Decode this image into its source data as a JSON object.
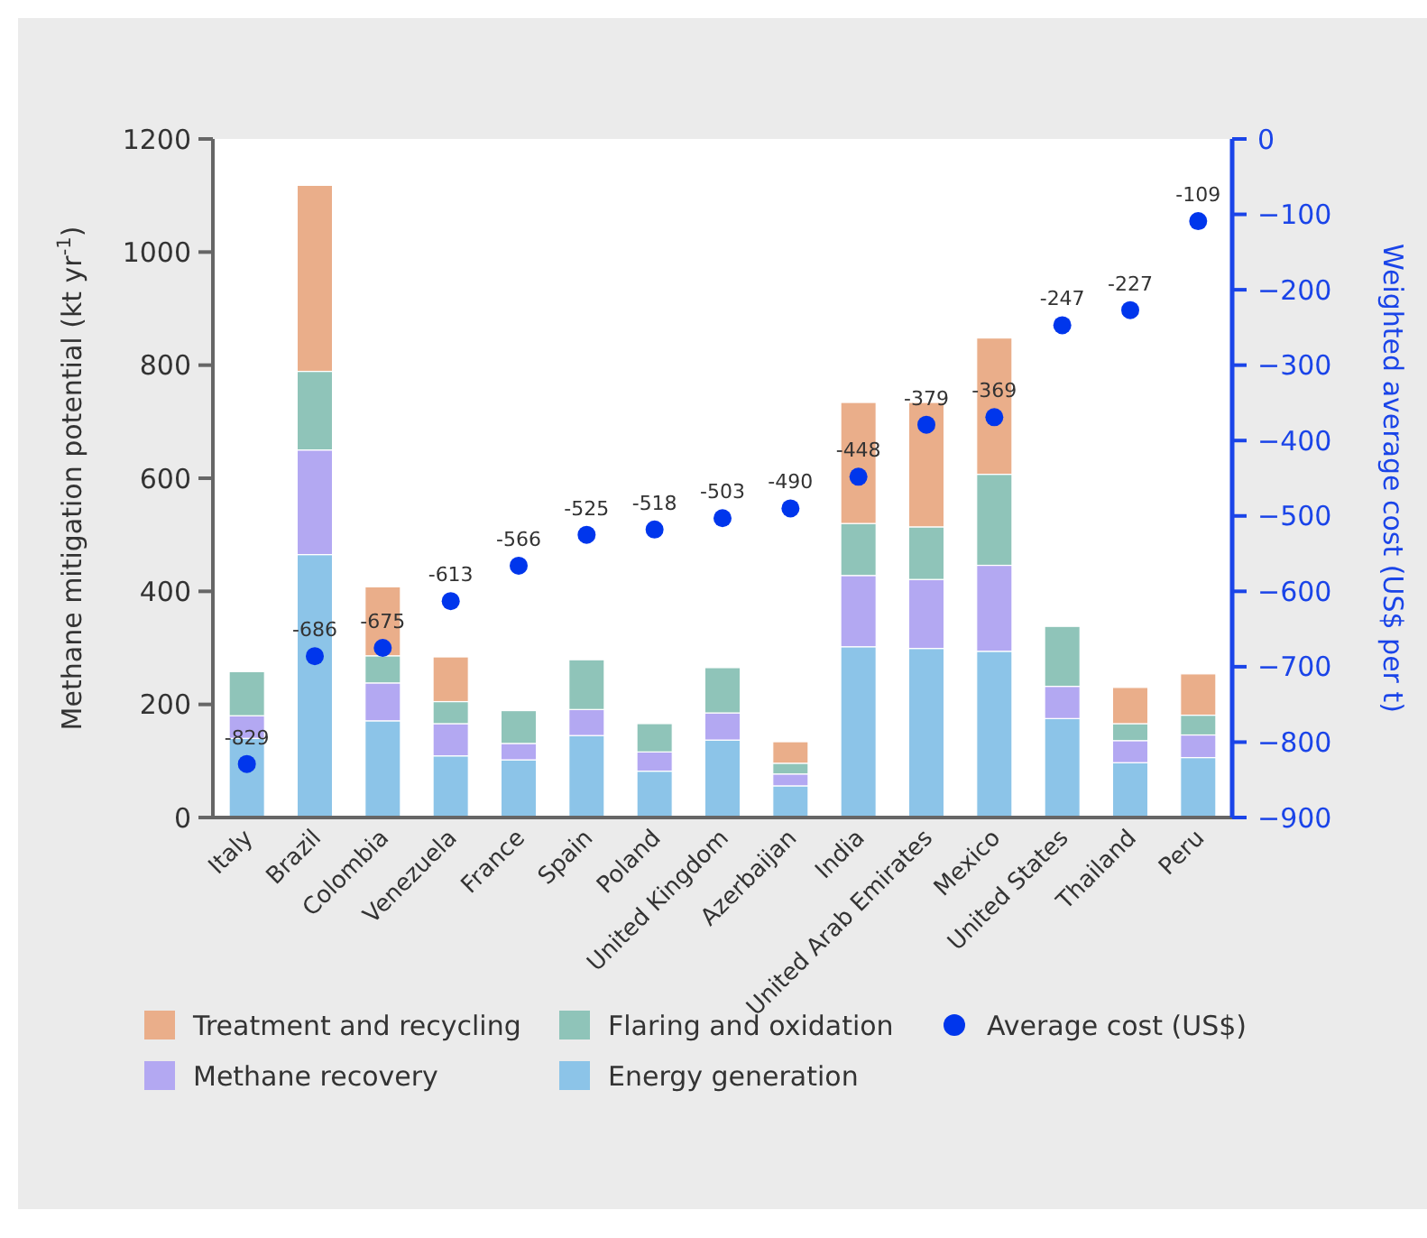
{
  "chart_data": {
    "type": "bar",
    "stacked": true,
    "ylabel": "Methane mitigation potential (kt yr$^{-1}$)",
    "y2label": "Weighted average cost (US$ per t)",
    "categories": [
      "Italy",
      "Brazil",
      "Colombia",
      "Venezuela",
      "France",
      "Spain",
      "Poland",
      "United Kingdom",
      "Azerbaijan",
      "India",
      "United Arab Emirates",
      "Mexico",
      "United States",
      "Thailand",
      "Peru"
    ],
    "ylim": [
      0,
      1200
    ],
    "yticks": [
      0,
      200,
      400,
      600,
      800,
      1000,
      1200
    ],
    "y2lim": [
      -900,
      0
    ],
    "y2ticks": [
      -900,
      -800,
      -700,
      -600,
      -500,
      -400,
      -300,
      -200,
      -100,
      0
    ],
    "legend": "bottom",
    "grid": false,
    "series": [
      {
        "name": "Energy generation",
        "color": "#8cc4e8",
        "values": [
          140,
          465,
          171,
          109,
          102,
          145,
          82,
          137,
          56,
          302,
          299,
          294,
          175,
          97,
          106
        ]
      },
      {
        "name": "Methane recovery",
        "color": "#b3a8f2",
        "values": [
          40,
          185,
          67,
          57,
          29,
          46,
          34,
          48,
          21,
          126,
          122,
          152,
          57,
          39,
          40
        ]
      },
      {
        "name": "Flaring and oxidation",
        "color": "#8fc4b9",
        "values": [
          78,
          139,
          48,
          39,
          58,
          88,
          50,
          80,
          19,
          92,
          93,
          161,
          106,
          30,
          35
        ]
      },
      {
        "name": "Treatment and recycling",
        "color": "#eaae8a",
        "values": [
          null,
          329,
          122,
          79,
          null,
          null,
          null,
          null,
          38,
          214,
          220,
          241,
          null,
          64,
          73
        ]
      },
      {
        "name": "Average cost (US$)",
        "type": "scatter",
        "axis": "y2",
        "marker": "circle",
        "data_labels": true,
        "color": "#0036ec",
        "values": [
          -829,
          -686,
          -675,
          -613,
          -566,
          -525,
          -518,
          -503,
          -490,
          -448,
          -379,
          -369,
          -247,
          -227,
          -109
        ]
      }
    ]
  }
}
